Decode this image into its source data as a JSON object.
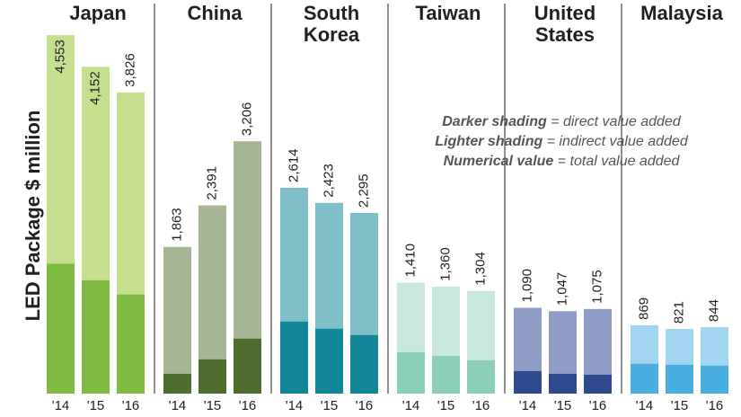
{
  "chart_data": {
    "type": "bar",
    "y_label": "LED Package $ million",
    "ylim": [
      0,
      5000
    ],
    "notes": [
      {
        "term": "Darker shading",
        "text": " = direct value added"
      },
      {
        "term": "Lighter shading",
        "text": " = indirect value added"
      },
      {
        "term": "Numerical value",
        "text": " = total value added"
      }
    ],
    "panels": [
      {
        "title": [
          "Japan"
        ],
        "categories": [
          "'14",
          "'15",
          "'16"
        ],
        "values": [
          4553,
          4152,
          3826
        ],
        "value_labels": [
          "4,553",
          "4,152",
          "3,826"
        ],
        "direct_values": [
          1650,
          1440,
          1260
        ],
        "light_color": "#c5df8f",
        "dark_color": "#7fbb42"
      },
      {
        "title": [
          "China"
        ],
        "categories": [
          "'14",
          "'15",
          "'16"
        ],
        "values": [
          1863,
          2391,
          3206
        ],
        "value_labels": [
          "1,863",
          "2,391",
          "3,206"
        ],
        "direct_values": [
          252,
          435,
          698
        ],
        "light_color": "#a6b594",
        "dark_color": "#4e6e30"
      },
      {
        "title": [
          "South",
          "Korea"
        ],
        "categories": [
          "'14",
          "'15",
          "'16"
        ],
        "values": [
          2614,
          2423,
          2295
        ],
        "value_labels": [
          "2,614",
          "2,423",
          "2,295"
        ],
        "direct_values": [
          915,
          824,
          744
        ],
        "light_color": "#7fbfca",
        "dark_color": "#138797"
      },
      {
        "title": [
          "Taiwan"
        ],
        "categories": [
          "'14",
          "'15",
          "'16"
        ],
        "values": [
          1410,
          1360,
          1304
        ],
        "value_labels": [
          "1,410",
          "1,360",
          "1,304"
        ],
        "direct_values": [
          526,
          480,
          423
        ],
        "light_color": "#c9e8df",
        "dark_color": "#8dd0b8"
      },
      {
        "title": [
          "United",
          "States"
        ],
        "categories": [
          "'14",
          "'15",
          "'16"
        ],
        "values": [
          1090,
          1047,
          1075
        ],
        "value_labels": [
          "1,090",
          "1,047",
          "1,075"
        ],
        "direct_values": [
          286,
          252,
          240
        ],
        "light_color": "#8f9dc6",
        "dark_color": "#2f4a8f"
      },
      {
        "title": [
          "Malaysia"
        ],
        "categories": [
          "'14",
          "'15",
          "'16"
        ],
        "values": [
          869,
          821,
          844
        ],
        "value_labels": [
          "869",
          "821",
          "844"
        ],
        "direct_values": [
          378,
          366,
          355
        ],
        "light_color": "#a1d5f0",
        "dark_color": "#4aaee0"
      }
    ]
  }
}
